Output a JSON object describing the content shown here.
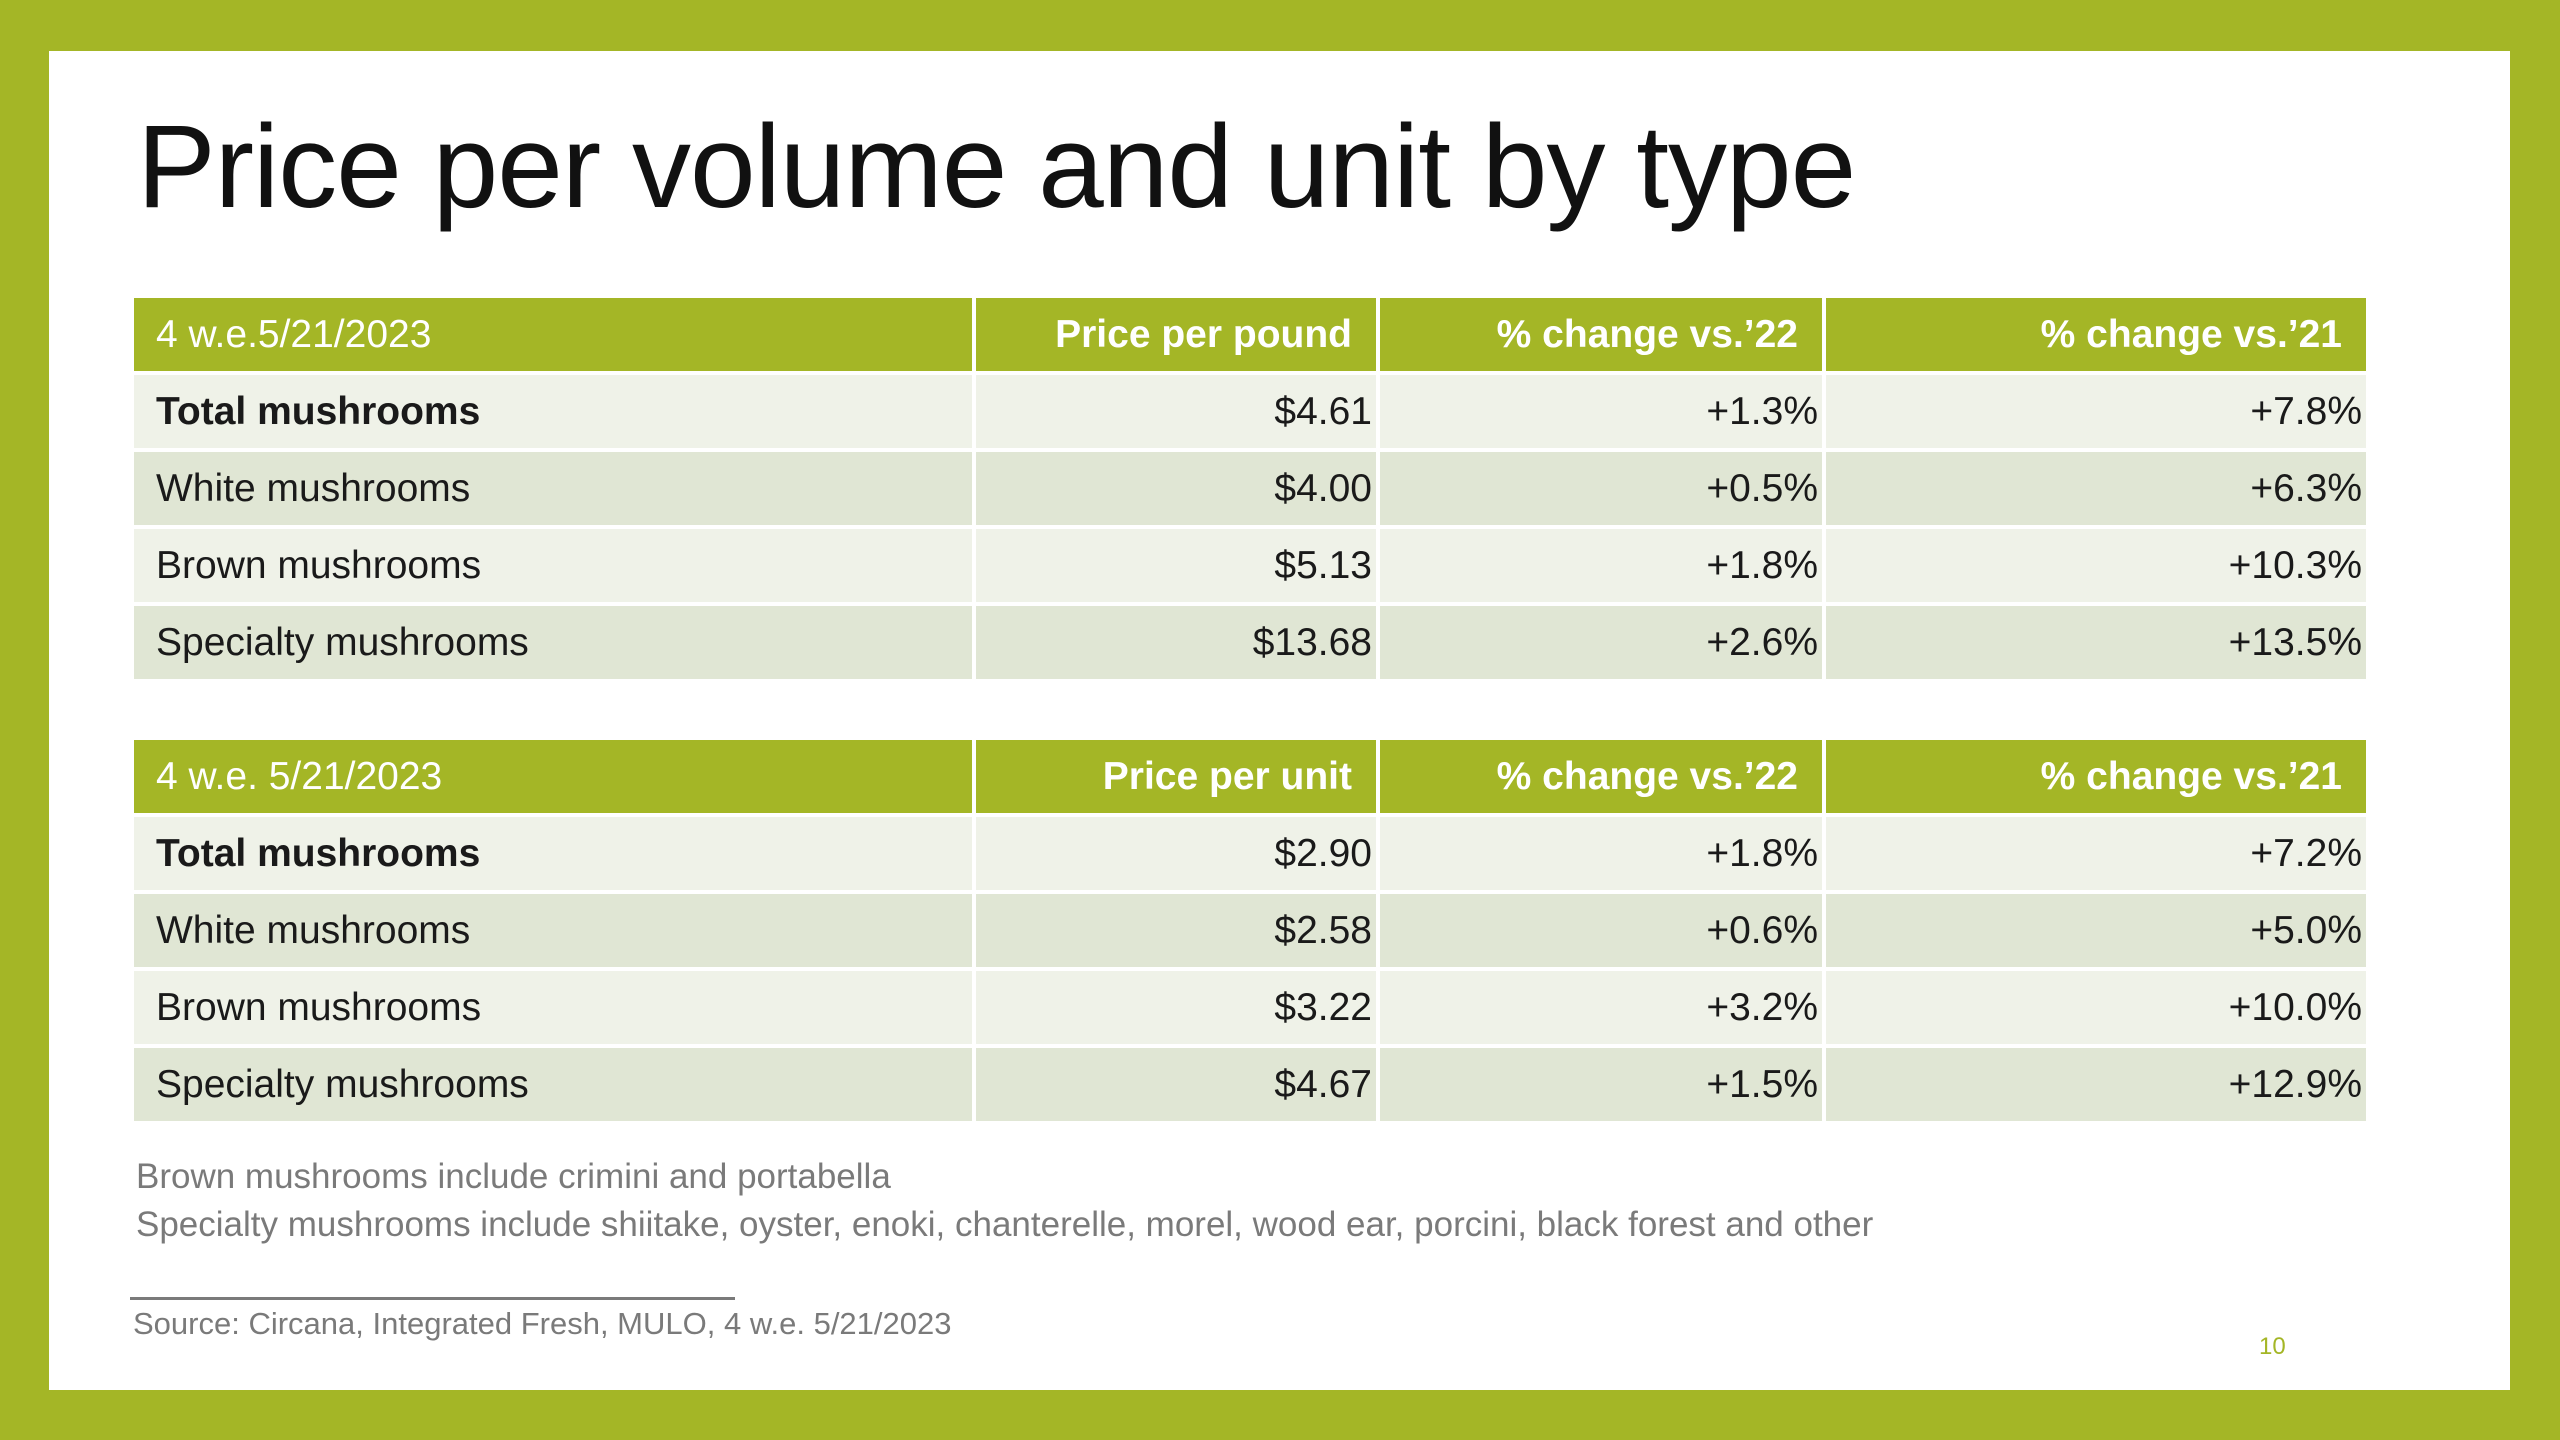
{
  "title": "Price per volume and unit by type",
  "table_pound": {
    "headers": [
      "4 w.e.5/21/2023",
      "Price per pound",
      "% change vs.’22",
      "% change vs.’21"
    ],
    "rows": [
      {
        "label": "Total mushrooms",
        "price": "$4.61",
        "chg22": "+1.3%",
        "chg21": "+7.8%"
      },
      {
        "label": "White mushrooms",
        "price": "$4.00",
        "chg22": "+0.5%",
        "chg21": "+6.3%"
      },
      {
        "label": "Brown mushrooms",
        "price": "$5.13",
        "chg22": "+1.8%",
        "chg21": "+10.3%"
      },
      {
        "label": "Specialty mushrooms",
        "price": "$13.68",
        "chg22": "+2.6%",
        "chg21": "+13.5%"
      }
    ]
  },
  "table_unit": {
    "headers": [
      "4 w.e. 5/21/2023",
      "Price per unit",
      "% change vs.’22",
      "% change vs.’21"
    ],
    "rows": [
      {
        "label": "Total mushrooms",
        "price": "$2.90",
        "chg22": "+1.8%",
        "chg21": "+7.2%"
      },
      {
        "label": "White mushrooms",
        "price": "$2.58",
        "chg22": "+0.6%",
        "chg21": "+5.0%"
      },
      {
        "label": "Brown mushrooms",
        "price": "$3.22",
        "chg22": "+3.2%",
        "chg21": "+10.0%"
      },
      {
        "label": "Specialty mushrooms",
        "price": "$4.67",
        "chg22": "+1.5%",
        "chg21": "+12.9%"
      }
    ]
  },
  "notes": [
    "Brown mushrooms include crimini and portabella",
    "Specialty mushrooms include shiitake, oyster, enoki, chanterelle, morel, wood ear, porcini, black forest and other"
  ],
  "source": "Source: Circana, Integrated Fresh, MULO, 4 w.e. 5/21/2023",
  "page_number": "10",
  "colors": {
    "accent": "#a4b626",
    "row_light": "#eff2e8",
    "row_dark": "#e0e6d4"
  }
}
